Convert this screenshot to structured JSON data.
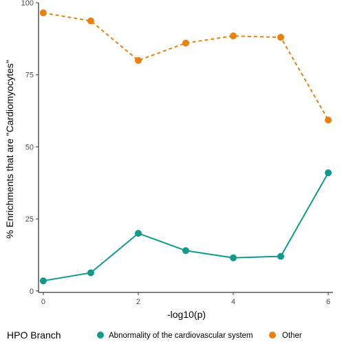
{
  "chart_data": {
    "type": "line",
    "xlabel": "-log10(p)",
    "ylabel": "% Enrichments that are \"Cardiomyocytes\"",
    "xlim": [
      -0.1,
      6.1
    ],
    "ylim": [
      -0.5,
      100
    ],
    "x_ticks": [
      0,
      2,
      4,
      6
    ],
    "y_ticks": [
      0,
      25,
      50,
      75,
      100
    ],
    "x_tick_labels": [
      "0",
      "2",
      "4",
      "6"
    ],
    "y_tick_labels": [
      "0",
      "25",
      "50",
      "75",
      "100"
    ],
    "grid": false,
    "legend_title": "HPO Branch",
    "legend_position": "bottom",
    "x": [
      0,
      1,
      2,
      3,
      4,
      5,
      6
    ],
    "series": [
      {
        "name": "Abnormality of the cardiovascular system",
        "values": [
          3.5,
          6.3,
          20.0,
          14.0,
          11.5,
          12.0,
          41.0
        ],
        "color": "#0f9a8a",
        "line_style": "solid"
      },
      {
        "name": "Other",
        "values": [
          96.5,
          93.7,
          80.0,
          86.0,
          88.5,
          88.0,
          59.3
        ],
        "color": "#e8820c",
        "line_style": "dashed"
      }
    ]
  }
}
